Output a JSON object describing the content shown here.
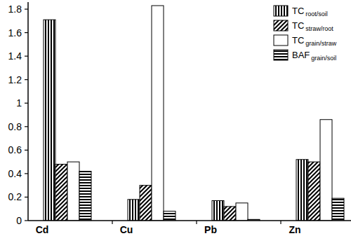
{
  "chart_data": {
    "type": "bar",
    "categories": [
      "Cd",
      "Cu",
      "Pb",
      "Zn"
    ],
    "series": [
      {
        "name": "TC root/soil",
        "color": "#000000",
        "values": [
          1.71,
          0.18,
          0.17,
          0.52
        ]
      },
      {
        "name": "TC straw/root",
        "color": "#000000",
        "values": [
          0.48,
          0.3,
          0.12,
          0.5
        ]
      },
      {
        "name": "TC grain/straw",
        "color": "#000000",
        "values": [
          0.5,
          1.83,
          0.15,
          0.86
        ]
      },
      {
        "name": "BAF grain/soil",
        "color": "#000000",
        "values": [
          0.42,
          0.08,
          0.01,
          0.19
        ]
      }
    ],
    "ylim": [
      0,
      1.86
    ],
    "yticks": [
      0,
      0.2,
      0.4,
      0.6,
      0.8,
      1,
      1.2,
      1.4,
      1.6,
      1.8
    ],
    "grid": false,
    "legend": "upper right"
  }
}
